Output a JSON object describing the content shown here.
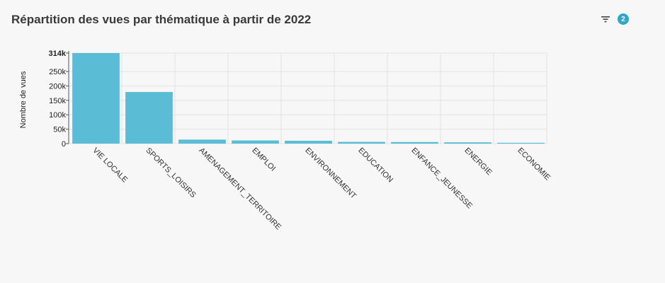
{
  "header": {
    "title": "Répartition des vues par thématique à partir de 2022",
    "filter_icon": "filter-icon",
    "filter_count": "2"
  },
  "colors": {
    "bar": "#5bbcd6",
    "badge": "#2ea8c5",
    "grid": "#e3e3e3"
  },
  "chart_data": {
    "type": "bar",
    "title": "Répartition des vues par thématique à partir de 2022",
    "xlabel": "",
    "ylabel": "Nombre de vues",
    "categories": [
      "VIE LOCALE",
      "SPORTS_LOISIRS",
      "AMENAGEMENT_TERRITOIRE",
      "EMPLOI",
      "ENVIRONNEMENT",
      "EDUCATION",
      "ENFANCE_JEUNESSE",
      "ENERGIE",
      "ECONOMIE"
    ],
    "values": [
      314000,
      179000,
      14000,
      11000,
      10000,
      6000,
      5500,
      4500,
      3000
    ],
    "ylim": [
      0,
      314000
    ],
    "yticks": [
      0,
      50000,
      100000,
      150000,
      200000,
      250000,
      314000
    ],
    "ytick_labels": [
      "0",
      "50k",
      "100k",
      "150k",
      "200k",
      "250k",
      "314k"
    ],
    "grid": true
  }
}
